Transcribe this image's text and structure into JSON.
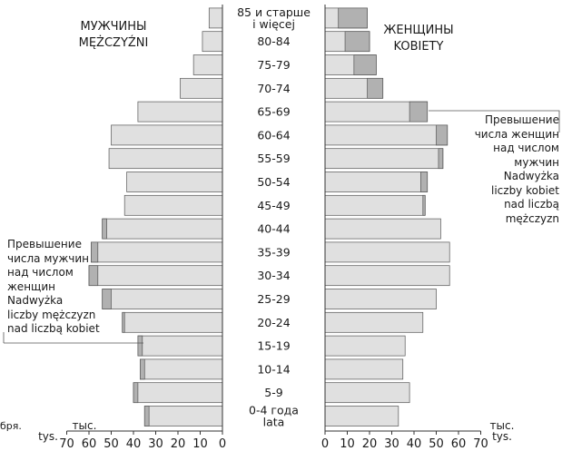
{
  "chart_data": {
    "type": "bar",
    "subtype": "population-pyramid",
    "categories": [
      [
        "0-4 года",
        "lata"
      ],
      [
        "5-9"
      ],
      [
        "10-14"
      ],
      [
        "15-19"
      ],
      [
        "20-24"
      ],
      [
        "25-29"
      ],
      [
        "30-34"
      ],
      [
        "35-39"
      ],
      [
        "40-44"
      ],
      [
        "45-49"
      ],
      [
        "50-54"
      ],
      [
        "55-59"
      ],
      [
        "60-64"
      ],
      [
        "65-69"
      ],
      [
        "70-74"
      ],
      [
        "75-79"
      ],
      [
        "80-84"
      ],
      [
        "85 и старше",
        "i więcej"
      ]
    ],
    "series": [
      {
        "name": "МУЖЧИНЫ / MĘŻCZYŹNI",
        "side": "left",
        "values": [
          35,
          40,
          37,
          38,
          45,
          54,
          60,
          59,
          54,
          44,
          43,
          51,
          50,
          38,
          19,
          13,
          9,
          6
        ]
      },
      {
        "name": "ЖЕНЩИНЫ / KOBIETY",
        "side": "right",
        "values": [
          33,
          38,
          35,
          36,
          44,
          50,
          56,
          56,
          52,
          45,
          46,
          53,
          55,
          46,
          26,
          23,
          20,
          19
        ]
      }
    ],
    "x_axis_left": {
      "ticks": [
        70,
        60,
        50,
        40,
        30,
        20,
        10,
        0
      ],
      "unit": [
        "тыс.",
        "tys."
      ],
      "range": [
        0,
        70
      ]
    },
    "x_axis_right": {
      "ticks": [
        0,
        10,
        20,
        30,
        40,
        50,
        60,
        70
      ],
      "unit": [
        "тыс.",
        "tys."
      ],
      "range": [
        0,
        70
      ]
    },
    "colors": {
      "bar": "#e0e0e0",
      "excess": "#b1b1b1",
      "edge": "#555555"
    }
  },
  "headings": {
    "men": [
      "МУЖЧИНЫ",
      "MĘŻCZYŹNI"
    ],
    "women": [
      "ЖЕНЩИНЫ",
      "KOBIETY"
    ]
  },
  "annotations": {
    "female_excess": [
      "Превышение",
      "числа женщин",
      "над числом",
      "мужчин",
      "Nadwyżka",
      "liczby kobiet",
      "nad liczbą",
      "mężczyzn"
    ],
    "male_excess": [
      "Превышение",
      "числа мужчин",
      "над числом",
      "женщин",
      "Nadwyżka",
      "liczby mężczyzn",
      "nad liczbą kobiet"
    ]
  },
  "clipped_left_text": "бря."
}
